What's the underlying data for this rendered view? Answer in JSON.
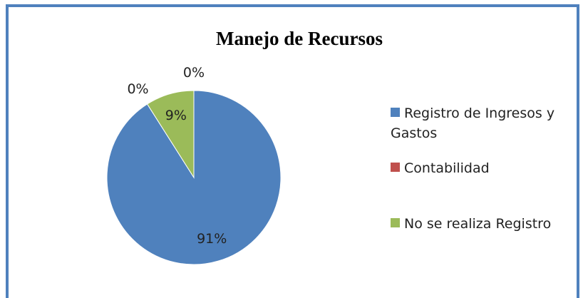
{
  "chart_data": {
    "type": "pie",
    "title": "Manejo de Recursos",
    "categories": [
      "Registro de Ingresos y Gastos",
      "Contabilidad",
      "No se realiza Registro",
      null
    ],
    "values": [
      91,
      0,
      9,
      0
    ],
    "value_labels": [
      "91%",
      "0%",
      "9%",
      "0%"
    ],
    "colors": [
      "#4f81bd",
      "#c0504d",
      "#9bbb59",
      "#8064a2"
    ],
    "legend": "right"
  }
}
